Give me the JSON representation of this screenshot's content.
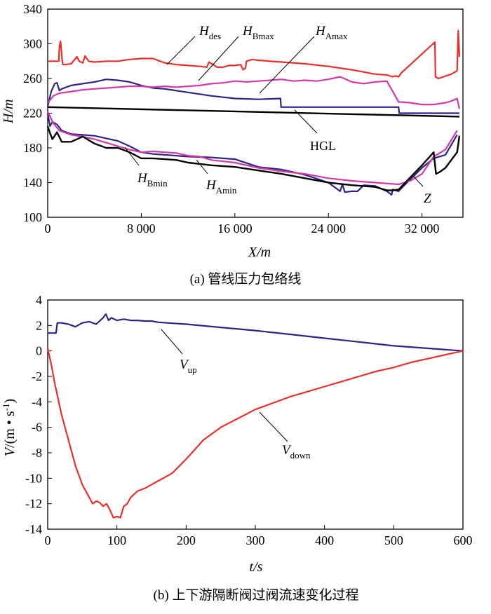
{
  "chart_data": [
    {
      "id": "a",
      "type": "line",
      "caption": "(a) 管线压力包络线",
      "ylabel": "H/m",
      "xlabel": "X/m",
      "xlim": [
        0,
        35500
      ],
      "ylim": [
        100,
        340
      ],
      "x_ticks": [
        0,
        8000,
        16000,
        24000,
        32000
      ],
      "x_tick_labels": [
        "0",
        "8 000",
        "16 000",
        "24 000",
        "32 000"
      ],
      "y_ticks": [
        100,
        140,
        180,
        220,
        260,
        300,
        340
      ],
      "y_tick_labels": [
        "100",
        "140",
        "180",
        "220",
        "260",
        "300",
        "340"
      ],
      "series": [
        {
          "name": "H_des",
          "label_main": "H",
          "label_sub": "des",
          "color": "#e8302a",
          "x": [
            0,
            950,
            1000,
            1100,
            1250,
            1300,
            1500,
            2000,
            2500,
            2700,
            3000,
            3200,
            3500,
            4000,
            5000,
            6000,
            7000,
            8000,
            9000,
            10000,
            11000,
            12000,
            13000,
            13600,
            13800,
            14500,
            15000,
            15500,
            16000,
            16500,
            16700,
            16900,
            17000,
            17500,
            18000,
            20000,
            22000,
            24000,
            26000,
            28000,
            29000,
            29500,
            29700,
            30000,
            30200,
            33100,
            33150,
            33400,
            34500,
            35000,
            35100,
            35200
          ],
          "y": [
            280,
            280,
            297,
            303,
            280,
            276,
            276,
            277,
            285,
            280,
            278,
            286,
            280,
            279,
            280,
            280,
            282,
            283,
            283,
            278,
            276,
            275,
            274,
            273,
            279,
            273,
            273,
            275,
            275,
            276,
            270,
            272,
            280,
            282,
            281,
            279,
            277,
            274,
            270,
            265,
            264,
            262,
            263,
            262,
            266,
            302,
            262,
            260,
            265,
            269,
            315,
            285
          ]
        },
        {
          "name": "H_Bmax",
          "label_main": "H",
          "label_sub": "Bmax",
          "color": "#2c2585",
          "x": [
            0,
            300,
            600,
            800,
            1000,
            1200,
            2000,
            3000,
            4000,
            5000,
            6000,
            7000,
            8000,
            9000,
            10000,
            12000,
            14000,
            16000,
            18000,
            19900,
            19950,
            30000,
            30050,
            35200
          ],
          "y": [
            228,
            245,
            254,
            255,
            246,
            248,
            252,
            254,
            256,
            259,
            258,
            256,
            252,
            249,
            248,
            244,
            240,
            237,
            236,
            237,
            227,
            227,
            220,
            220
          ]
        },
        {
          "name": "H_Amax",
          "label_main": "H",
          "label_sub": "Amax",
          "color": "#d23aa5",
          "x": [
            0,
            500,
            1000,
            2000,
            3000,
            4000,
            5000,
            6000,
            7000,
            8000,
            9000,
            10000,
            11000,
            12000,
            13000,
            14000,
            15000,
            16000,
            17000,
            18000,
            19000,
            20000,
            21000,
            22000,
            23000,
            24000,
            25000,
            26000,
            27000,
            28000,
            29000,
            30000,
            31000,
            32000,
            33000,
            34000,
            34500,
            35000,
            35200
          ],
          "y": [
            232,
            240,
            243,
            245,
            247,
            248,
            249,
            250,
            251,
            251,
            250,
            251,
            250,
            251,
            252,
            254,
            255,
            257,
            256,
            257,
            258,
            259,
            257,
            258,
            257,
            259,
            262,
            256,
            254,
            256,
            257,
            233,
            232,
            230,
            230,
            232,
            234,
            237,
            225
          ]
        },
        {
          "name": "HGL",
          "label_main": "HGL",
          "color": "#000000",
          "x": [
            0,
            35200
          ],
          "y": [
            227,
            216
          ]
        },
        {
          "name": "H_Bmin",
          "label_main": "H",
          "label_sub": "Bmin",
          "color": "#2c2585",
          "x": [
            0,
            200,
            400,
            800,
            1200,
            2000,
            3000,
            4000,
            5000,
            6000,
            7000,
            8000,
            9000,
            10000,
            12000,
            14000,
            16000,
            18000,
            20000,
            21000,
            22000,
            24000,
            25000,
            25200,
            25400,
            26000,
            26500,
            27000,
            28000,
            29000,
            29400,
            29500,
            30000,
            30200,
            32000,
            33000,
            34000,
            35000
          ],
          "y": [
            220,
            205,
            210,
            207,
            200,
            196,
            195,
            194,
            191,
            188,
            182,
            175,
            173,
            172,
            170,
            169,
            167,
            158,
            155,
            152,
            149,
            140,
            130,
            138,
            129,
            130,
            130,
            137,
            136,
            130,
            126,
            132,
            130,
            133,
            157,
            168,
            172,
            195
          ]
        },
        {
          "name": "H_Amin",
          "label_main": "H",
          "label_sub": "Amin",
          "color": "#d23aa5",
          "x": [
            0,
            500,
            1000,
            2000,
            3000,
            4000,
            5000,
            6000,
            7000,
            8000,
            9000,
            10000,
            11000,
            12000,
            13000,
            14000,
            16000,
            18000,
            20000,
            22000,
            24000,
            26000,
            28000,
            30000,
            31000,
            32000,
            33000,
            34000,
            35000
          ],
          "y": [
            222,
            208,
            200,
            195,
            193,
            190,
            186,
            182,
            178,
            175,
            176,
            175,
            174,
            171,
            170,
            166,
            163,
            157,
            153,
            150,
            145,
            142,
            140,
            138,
            142,
            150,
            170,
            178,
            200
          ]
        },
        {
          "name": "Z",
          "label_main": "Z",
          "color": "#000000",
          "x": [
            0,
            200,
            400,
            800,
            1200,
            2000,
            3000,
            4000,
            5000,
            6000,
            7000,
            8000,
            9000,
            10000,
            11000,
            12000,
            14000,
            16000,
            18000,
            20000,
            22000,
            24000,
            26000,
            28000,
            29000,
            29500,
            30000,
            32000,
            33000,
            33200,
            33500,
            34000,
            35000,
            35200
          ],
          "y": [
            205,
            197,
            190,
            198,
            187,
            187,
            193,
            185,
            180,
            180,
            175,
            168,
            168,
            167,
            166,
            163,
            160,
            158,
            154,
            150,
            145,
            140,
            137,
            135,
            131,
            131,
            132,
            160,
            175,
            150,
            152,
            157,
            175,
            194
          ]
        }
      ]
    },
    {
      "id": "b",
      "type": "line",
      "caption": "(b) 上下游隔断阀过阀流速变化过程",
      "ylabel_main": "V",
      "ylabel_unit": "/(m • s",
      "ylabel_sup": "-1",
      "ylabel_close": ")",
      "xlabel": "t/s",
      "xlim": [
        0,
        600
      ],
      "ylim": [
        -14,
        4
      ],
      "x_ticks": [
        0,
        100,
        200,
        300,
        400,
        500,
        600
      ],
      "x_tick_labels": [
        "0",
        "100",
        "200",
        "300",
        "400",
        "500",
        "600"
      ],
      "y_ticks": [
        -14,
        -12,
        -10,
        -8,
        -6,
        -4,
        -2,
        0,
        2,
        4
      ],
      "y_tick_labels": [
        "-14",
        "-12",
        "-10",
        "-8",
        "-6",
        "-4",
        "-2",
        "0",
        "2",
        "4"
      ],
      "series": [
        {
          "name": "V_up",
          "label_main": "V",
          "label_sub": "up",
          "color": "#2c2585",
          "x": [
            0,
            12,
            14,
            20,
            30,
            40,
            50,
            60,
            70,
            80,
            84,
            88,
            92,
            100,
            110,
            120,
            130,
            140,
            150,
            160,
            200,
            250,
            300,
            350,
            400,
            450,
            500,
            550,
            600
          ],
          "y": [
            1.4,
            1.4,
            2.2,
            2.2,
            2.1,
            1.9,
            2.2,
            2.3,
            2.1,
            2.6,
            2.9,
            2.4,
            2.6,
            2.4,
            2.5,
            2.4,
            2.4,
            2.35,
            2.35,
            2.25,
            2.1,
            1.85,
            1.6,
            1.3,
            1.0,
            0.7,
            0.4,
            0.2,
            0.0
          ]
        },
        {
          "name": "V_down",
          "label_main": "V",
          "label_sub": "down",
          "color": "#e8302a",
          "x": [
            0,
            5,
            10,
            20,
            30,
            40,
            50,
            60,
            65,
            70,
            75,
            80,
            85,
            90,
            95,
            100,
            105,
            110,
            115,
            120,
            130,
            140,
            150,
            160,
            180,
            200,
            225,
            250,
            275,
            300,
            325,
            350,
            375,
            400,
            425,
            450,
            475,
            500,
            525,
            550,
            575,
            600
          ],
          "y": [
            0.2,
            -1.0,
            -2.5,
            -5.0,
            -7.0,
            -9.0,
            -10.5,
            -11.5,
            -12.0,
            -11.8,
            -11.9,
            -12.2,
            -12.0,
            -12.5,
            -13.1,
            -13.0,
            -13.1,
            -12.2,
            -12.0,
            -11.5,
            -11.0,
            -10.8,
            -10.5,
            -10.2,
            -9.6,
            -8.5,
            -7.0,
            -6.0,
            -5.3,
            -4.6,
            -4.1,
            -3.6,
            -3.2,
            -2.8,
            -2.4,
            -2.0,
            -1.6,
            -1.3,
            -0.9,
            -0.6,
            -0.3,
            0.0
          ]
        }
      ]
    }
  ]
}
